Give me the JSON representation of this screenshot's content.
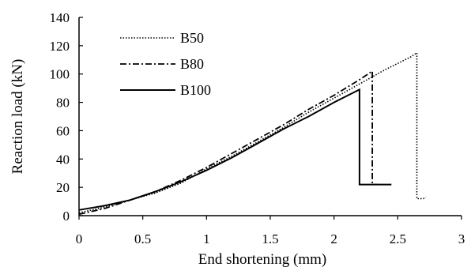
{
  "chart_data": {
    "type": "line",
    "title": "",
    "xlabel": "End shortening (mm)",
    "ylabel": "Reaction load (kN)",
    "xlim": [
      0,
      3
    ],
    "ylim": [
      0,
      140
    ],
    "xticks": [
      "0",
      "0.5",
      "1",
      "1.5",
      "2",
      "2.5",
      "3"
    ],
    "yticks": [
      "0",
      "20",
      "40",
      "60",
      "80",
      "100",
      "120",
      "140"
    ],
    "grid": false,
    "legend_position": "top-left",
    "series": [
      {
        "name": "B50",
        "style": "dotted",
        "color": "#000000",
        "points": [
          [
            0,
            2
          ],
          [
            0.2,
            6
          ],
          [
            0.4,
            11
          ],
          [
            0.6,
            16
          ],
          [
            0.8,
            23
          ],
          [
            1.0,
            33
          ],
          [
            1.2,
            42
          ],
          [
            1.4,
            52
          ],
          [
            1.6,
            62
          ],
          [
            1.8,
            73
          ],
          [
            2.0,
            83
          ],
          [
            2.2,
            93
          ],
          [
            2.4,
            103
          ],
          [
            2.6,
            112
          ],
          [
            2.65,
            115
          ],
          [
            2.65,
            12
          ],
          [
            2.7,
            12
          ],
          [
            2.72,
            13
          ]
        ]
      },
      {
        "name": "B80",
        "style": "dashdot",
        "color": "#000000",
        "points": [
          [
            0,
            1
          ],
          [
            0.2,
            5
          ],
          [
            0.4,
            11
          ],
          [
            0.6,
            17
          ],
          [
            0.8,
            25
          ],
          [
            1.0,
            34
          ],
          [
            1.2,
            44
          ],
          [
            1.4,
            54
          ],
          [
            1.6,
            64
          ],
          [
            1.8,
            75
          ],
          [
            2.0,
            85
          ],
          [
            2.2,
            96
          ],
          [
            2.3,
            102
          ],
          [
            2.3,
            22
          ],
          [
            2.35,
            22
          ]
        ]
      },
      {
        "name": "B100",
        "style": "solid",
        "color": "#000000",
        "points": [
          [
            0,
            4
          ],
          [
            0.2,
            7
          ],
          [
            0.4,
            11
          ],
          [
            0.6,
            17
          ],
          [
            0.8,
            24
          ],
          [
            1.0,
            32
          ],
          [
            1.2,
            41
          ],
          [
            1.4,
            51
          ],
          [
            1.6,
            61
          ],
          [
            1.8,
            70
          ],
          [
            2.0,
            80
          ],
          [
            2.2,
            89
          ],
          [
            2.2,
            22
          ],
          [
            2.35,
            22
          ],
          [
            2.45,
            22
          ]
        ]
      }
    ]
  }
}
